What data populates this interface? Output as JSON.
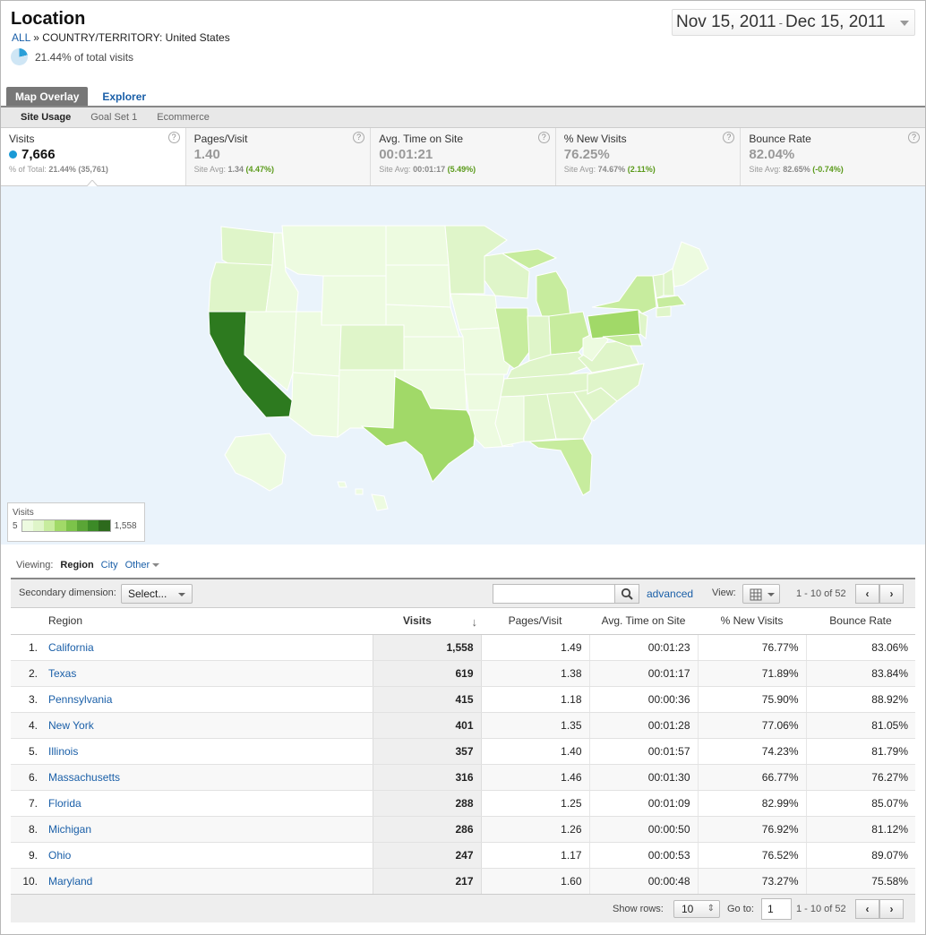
{
  "header": {
    "title": "Location",
    "breadcrumb_all": "ALL",
    "breadcrumb_sep": "»",
    "breadcrumb_dim": "COUNTRY/TERRITORY:",
    "breadcrumb_value": "United States",
    "pct_total": "21.44% of total visits",
    "pct_fraction": 0.2144
  },
  "date_range": {
    "start": "Nov 15, 2011",
    "sep": "-",
    "end": "Dec 15, 2011"
  },
  "tabs": [
    {
      "label": "Map Overlay"
    },
    {
      "label": "Explorer"
    }
  ],
  "subtabs": [
    {
      "label": "Site Usage"
    },
    {
      "label": "Goal Set 1"
    },
    {
      "label": "Ecommerce"
    }
  ],
  "metrics": [
    {
      "label": "Visits",
      "value": "7,666",
      "sub_prefix": "% of Total:",
      "sub_value": "21.44% (35,761)",
      "sub_change": ""
    },
    {
      "label": "Pages/Visit",
      "value": "1.40",
      "sub_prefix": "Site Avg:",
      "sub_value": "1.34",
      "sub_change": "(4.47%)"
    },
    {
      "label": "Avg. Time on Site",
      "value": "00:01:21",
      "sub_prefix": "Site Avg:",
      "sub_value": "00:01:17",
      "sub_change": "(5.49%)"
    },
    {
      "label": "% New Visits",
      "value": "76.25%",
      "sub_prefix": "Site Avg:",
      "sub_value": "74.67%",
      "sub_change": "(2.11%)"
    },
    {
      "label": "Bounce Rate",
      "value": "82.04%",
      "sub_prefix": "Site Avg:",
      "sub_value": "82.65%",
      "sub_change": "(-0.74%)"
    }
  ],
  "help_glyph": "?",
  "map": {
    "legend_label": "Visits",
    "legend_min": "5",
    "legend_max": "1,558",
    "colors": {
      "ocean": "#eaf3fb",
      "darkest": "#2d7a1f",
      "dark": "#a1d968",
      "mid": "#c7ec9e",
      "light": "#dff5c9",
      "lightest": "#edfbe0",
      "border": "#ffffff"
    }
  },
  "viewing": {
    "label": "Viewing:",
    "current": "Region",
    "city": "City",
    "other": "Other"
  },
  "controls": {
    "secondary_label": "Secondary dimension:",
    "select_label": "Select...",
    "advanced": "advanced",
    "view_label": "View:",
    "range": "1 - 10 of 52"
  },
  "table": {
    "headers": {
      "region": "Region",
      "visits": "Visits",
      "pages": "Pages/Visit",
      "time": "Avg. Time on Site",
      "new": "% New Visits",
      "bounce": "Bounce Rate"
    },
    "rows": [
      {
        "idx": "1.",
        "region": "California",
        "visits": "1,558",
        "pages": "1.49",
        "time": "00:01:23",
        "new": "76.77%",
        "bounce": "83.06%"
      },
      {
        "idx": "2.",
        "region": "Texas",
        "visits": "619",
        "pages": "1.38",
        "time": "00:01:17",
        "new": "71.89%",
        "bounce": "83.84%"
      },
      {
        "idx": "3.",
        "region": "Pennsylvania",
        "visits": "415",
        "pages": "1.18",
        "time": "00:00:36",
        "new": "75.90%",
        "bounce": "88.92%"
      },
      {
        "idx": "4.",
        "region": "New York",
        "visits": "401",
        "pages": "1.35",
        "time": "00:01:28",
        "new": "77.06%",
        "bounce": "81.05%"
      },
      {
        "idx": "5.",
        "region": "Illinois",
        "visits": "357",
        "pages": "1.40",
        "time": "00:01:57",
        "new": "74.23%",
        "bounce": "81.79%"
      },
      {
        "idx": "6.",
        "region": "Massachusetts",
        "visits": "316",
        "pages": "1.46",
        "time": "00:01:30",
        "new": "66.77%",
        "bounce": "76.27%"
      },
      {
        "idx": "7.",
        "region": "Florida",
        "visits": "288",
        "pages": "1.25",
        "time": "00:01:09",
        "new": "82.99%",
        "bounce": "85.07%"
      },
      {
        "idx": "8.",
        "region": "Michigan",
        "visits": "286",
        "pages": "1.26",
        "time": "00:00:50",
        "new": "76.92%",
        "bounce": "81.12%"
      },
      {
        "idx": "9.",
        "region": "Ohio",
        "visits": "247",
        "pages": "1.17",
        "time": "00:00:53",
        "new": "76.52%",
        "bounce": "89.07%"
      },
      {
        "idx": "10.",
        "region": "Maryland",
        "visits": "217",
        "pages": "1.60",
        "time": "00:00:48",
        "new": "73.27%",
        "bounce": "75.58%"
      }
    ]
  },
  "footer": {
    "show_rows_label": "Show rows:",
    "show_rows_value": "10",
    "goto_label": "Go to:",
    "goto_value": "1",
    "range": "1 - 10 of 52"
  },
  "icons": {
    "prev": "‹",
    "next": "›",
    "sort": "↓"
  }
}
